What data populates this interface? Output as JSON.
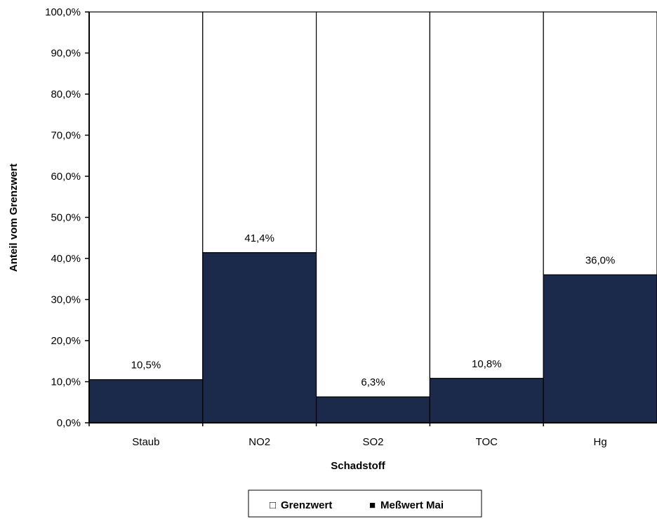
{
  "chart_data": {
    "type": "bar",
    "stacked": true,
    "categories": [
      "Staub",
      "NO2",
      "SO2",
      "TOC",
      "Hg"
    ],
    "series": [
      {
        "name": "Meßwert Mai",
        "values": [
          10.5,
          41.4,
          6.3,
          10.8,
          36.0
        ],
        "color": "#1b2a4a"
      },
      {
        "name": "Grenzwert",
        "values": [
          89.5,
          58.6,
          93.7,
          89.2,
          64.0
        ],
        "color": "#ffffff"
      }
    ],
    "data_labels": [
      "10,5%",
      "41,4%",
      "6,3%",
      "10,8%",
      "36,0%"
    ],
    "xlabel": "Schadstoff",
    "ylabel": "Anteil vom Grenzwert",
    "ylim": [
      0,
      100
    ],
    "y_ticks": [
      0,
      10,
      20,
      30,
      40,
      50,
      60,
      70,
      80,
      90,
      100
    ],
    "y_tick_labels": [
      "0,0%",
      "10,0%",
      "20,0%",
      "30,0%",
      "40,0%",
      "50,0%",
      "60,0%",
      "70,0%",
      "80,0%",
      "90,0%",
      "100,0%"
    ],
    "grid": false,
    "legend": {
      "placement": "bottom-center",
      "items": [
        {
          "marker": "□",
          "label": "Grenzwert"
        },
        {
          "marker": "■",
          "label": "Meßwert Mai"
        }
      ]
    }
  }
}
